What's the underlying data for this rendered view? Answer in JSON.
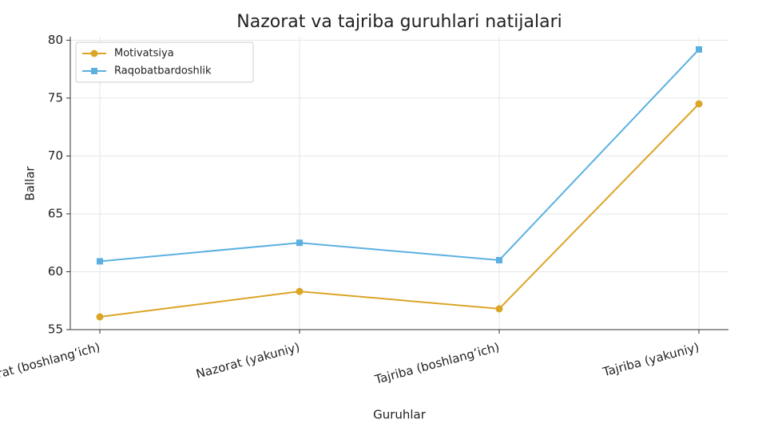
{
  "chart_data": {
    "type": "line",
    "title": "Nazorat va tajriba guruhlari natijalari",
    "xlabel": "Guruhlar",
    "ylabel": "Ballar",
    "categories": [
      "Nazorat (boshlang’ich)",
      "Nazorat (yakuniy)",
      "Tajriba (boshlang’ich)",
      "Tajriba (yakuniy)"
    ],
    "series": [
      {
        "name": "Motivatsiya",
        "color": "#dba526",
        "marker": "circle",
        "values": [
          56.1,
          58.3,
          56.8,
          74.5
        ]
      },
      {
        "name": "Raqobatbardoshlik",
        "color": "#5bb0e0",
        "marker": "square",
        "values": [
          60.9,
          62.5,
          61.0,
          79.2
        ]
      }
    ],
    "ylim": [
      55,
      80.3
    ],
    "yticks": [
      55,
      60,
      65,
      70,
      75,
      80
    ],
    "grid": true,
    "legend": "upper left"
  }
}
